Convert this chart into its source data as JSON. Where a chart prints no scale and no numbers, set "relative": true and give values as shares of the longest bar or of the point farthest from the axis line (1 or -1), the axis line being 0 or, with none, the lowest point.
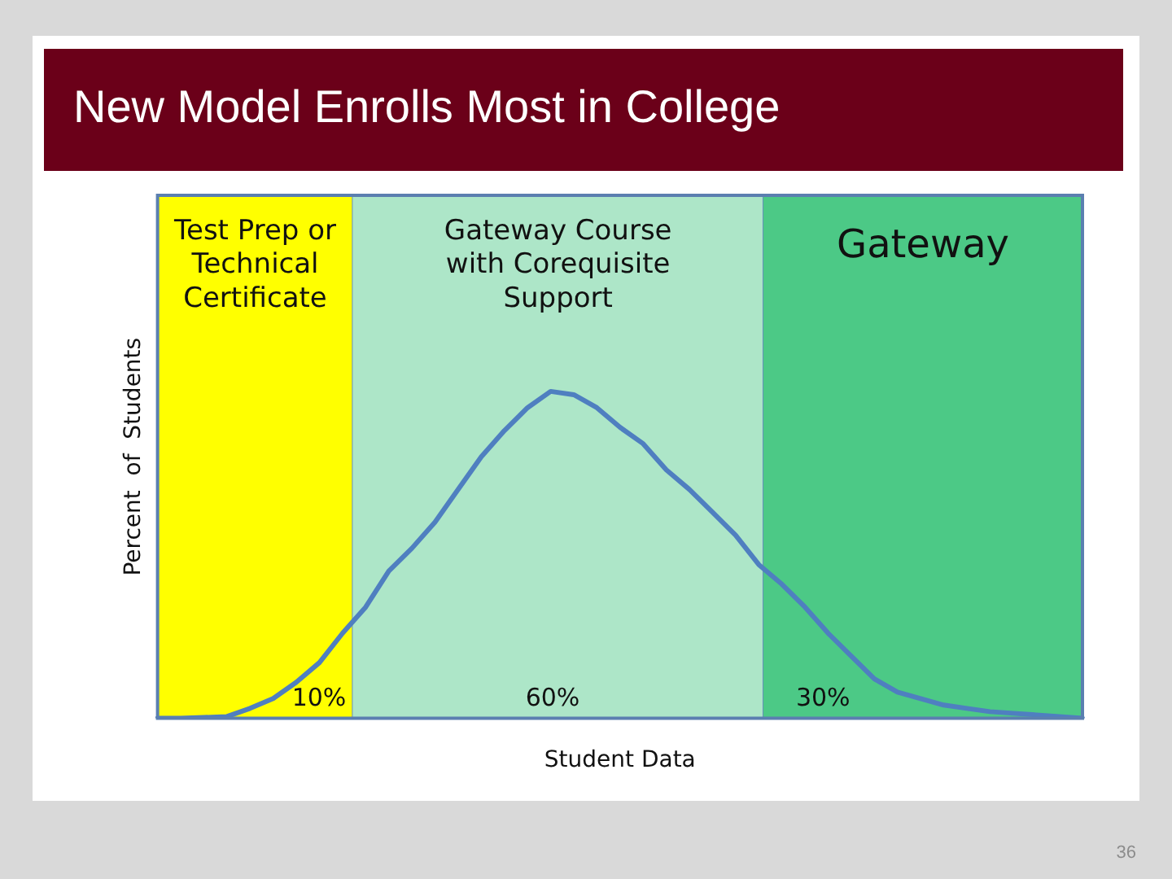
{
  "chart_data": {
    "type": "line",
    "title": "New Model Enrolls Most in College",
    "xlabel": "Student Data",
    "ylabel": "Percent  of  Students",
    "relative": true,
    "tick_labels": false,
    "legend": false,
    "marker": "none",
    "line_style": "solid",
    "categories": [
      null,
      null,
      null,
      null,
      null,
      null,
      null,
      null,
      null,
      null,
      null,
      null,
      null,
      null,
      null,
      null,
      null,
      null,
      null,
      null,
      null,
      null,
      null,
      null,
      null,
      null,
      null,
      null,
      null,
      null,
      null,
      null,
      null,
      null,
      null,
      null,
      null,
      null,
      null,
      null,
      null
    ],
    "series": [
      {
        "color": "#4f7fc0",
        "values": [
          0,
          0,
          0.002,
          0.005,
          0.03,
          0.06,
          0.11,
          0.17,
          0.26,
          0.34,
          0.45,
          0.52,
          0.6,
          0.7,
          0.8,
          0.88,
          0.95,
          1.0,
          0.99,
          0.95,
          0.89,
          0.84,
          0.76,
          0.7,
          0.63,
          0.56,
          0.47,
          0.41,
          0.34,
          0.26,
          0.19,
          0.12,
          0.08,
          0.06,
          0.04,
          0.03,
          0.02,
          0.015,
          0.01,
          0.005,
          0
        ]
      }
    ],
    "annotations": [
      "Test Prep or Technical Certificate",
      "Gateway Course with Corequisite Support",
      "Gateway",
      "10%",
      "60%",
      "30%",
      "36"
    ]
  }
}
